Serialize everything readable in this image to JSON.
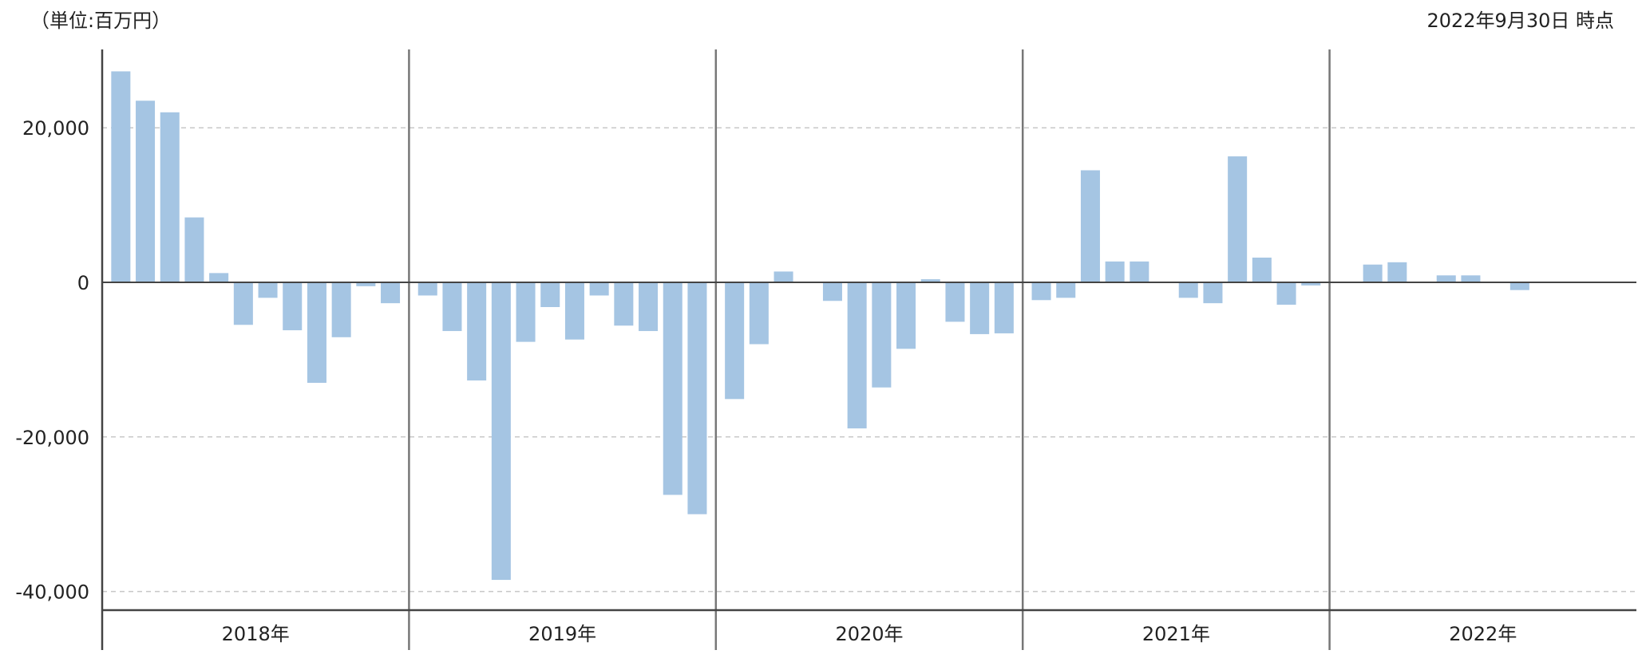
{
  "unit_label": "（単位:百万円）",
  "as_of_label": "2022年9月30日 時点",
  "colors": {
    "bar": "#a5c5e3",
    "axis": "#444444",
    "grid": "#c8c8c8",
    "negative_tick": "#ee1c1c",
    "text": "#222222"
  },
  "chart_data": {
    "type": "bar",
    "ylim": [
      -42000,
      30000
    ],
    "grid": true,
    "yticks": [
      {
        "value": 20000,
        "label": "20,000",
        "negative": false
      },
      {
        "value": 0,
        "label": "0",
        "negative": false
      },
      {
        "value": -20000,
        "label": "-20,000",
        "negative": true
      },
      {
        "value": -40000,
        "label": "-40,000",
        "negative": true
      }
    ],
    "years": [
      {
        "label": "2018年",
        "values": [
          27300,
          23500,
          22000,
          8400,
          1200,
          -5500,
          -2000,
          -6200,
          -13000,
          -7100,
          -500,
          -2700
        ]
      },
      {
        "label": "2019年",
        "values": [
          -1700,
          -6300,
          -12700,
          -38500,
          -7700,
          -3200,
          -7400,
          -1700,
          -5600,
          -6300,
          -27500,
          -30000
        ]
      },
      {
        "label": "2020年",
        "values": [
          -15100,
          -8000,
          1400,
          null,
          -2400,
          -18900,
          -13600,
          -8600,
          400,
          -5100,
          -6700,
          -6600
        ]
      },
      {
        "label": "2021年",
        "values": [
          -2300,
          -2000,
          14500,
          2700,
          2700,
          null,
          -2000,
          -2700,
          16300,
          3200,
          -2900,
          -400
        ]
      },
      {
        "label": "2022年",
        "values": [
          null,
          2300,
          2600,
          null,
          900,
          900,
          null,
          -1000,
          null,
          null,
          null,
          null
        ]
      }
    ]
  }
}
